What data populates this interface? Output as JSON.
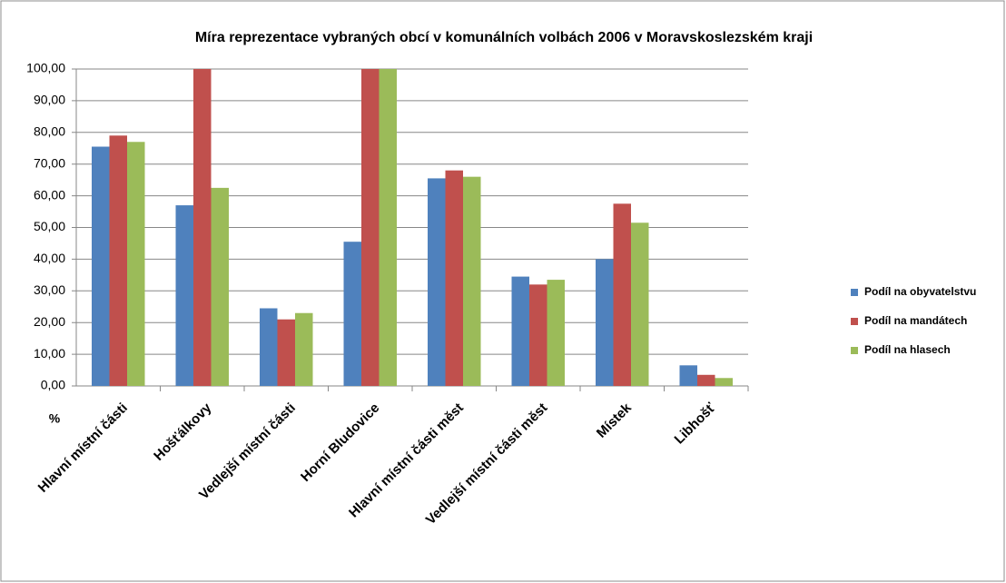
{
  "chart_data": {
    "type": "bar",
    "title": "Míra reprezentace vybraných obcí v komunálních volbách 2006 v Moravskoslezském kraji",
    "ylabel": "%",
    "categories": [
      "Hlavní místní části",
      "Hošťálkovy",
      "Vedlejší místní části",
      "Horní Bludovice",
      "Hlavní místní části měst",
      "Vedlejší místní části měst",
      "Místek",
      "Libhošť"
    ],
    "series": [
      {
        "name": "Podíl na obyvatelstvu",
        "color": "#4f81bd",
        "values": [
          75.5,
          57,
          24.5,
          45.5,
          65.5,
          34.5,
          40,
          6.5
        ]
      },
      {
        "name": "Podíl na mandátech",
        "color": "#c0504d",
        "values": [
          79,
          100,
          21,
          100,
          68,
          32,
          57.5,
          3.5
        ]
      },
      {
        "name": "Podíl na hlasech",
        "color": "#9bbb59",
        "values": [
          77,
          62.5,
          23,
          100,
          66,
          33.5,
          51.5,
          2.5
        ]
      }
    ],
    "ylim": [
      0,
      100
    ],
    "yticks": [
      {
        "value": 0,
        "label": "0,00"
      },
      {
        "value": 10,
        "label": "10,00"
      },
      {
        "value": 20,
        "label": "20,00"
      },
      {
        "value": 30,
        "label": "30,00"
      },
      {
        "value": 40,
        "label": "40,00"
      },
      {
        "value": 50,
        "label": "50,00"
      },
      {
        "value": 60,
        "label": "60,00"
      },
      {
        "value": 70,
        "label": "70,00"
      },
      {
        "value": 80,
        "label": "80,00"
      },
      {
        "value": 90,
        "label": "90,00"
      },
      {
        "value": 100,
        "label": "100,00"
      }
    ],
    "grid": true,
    "legend": "right"
  }
}
